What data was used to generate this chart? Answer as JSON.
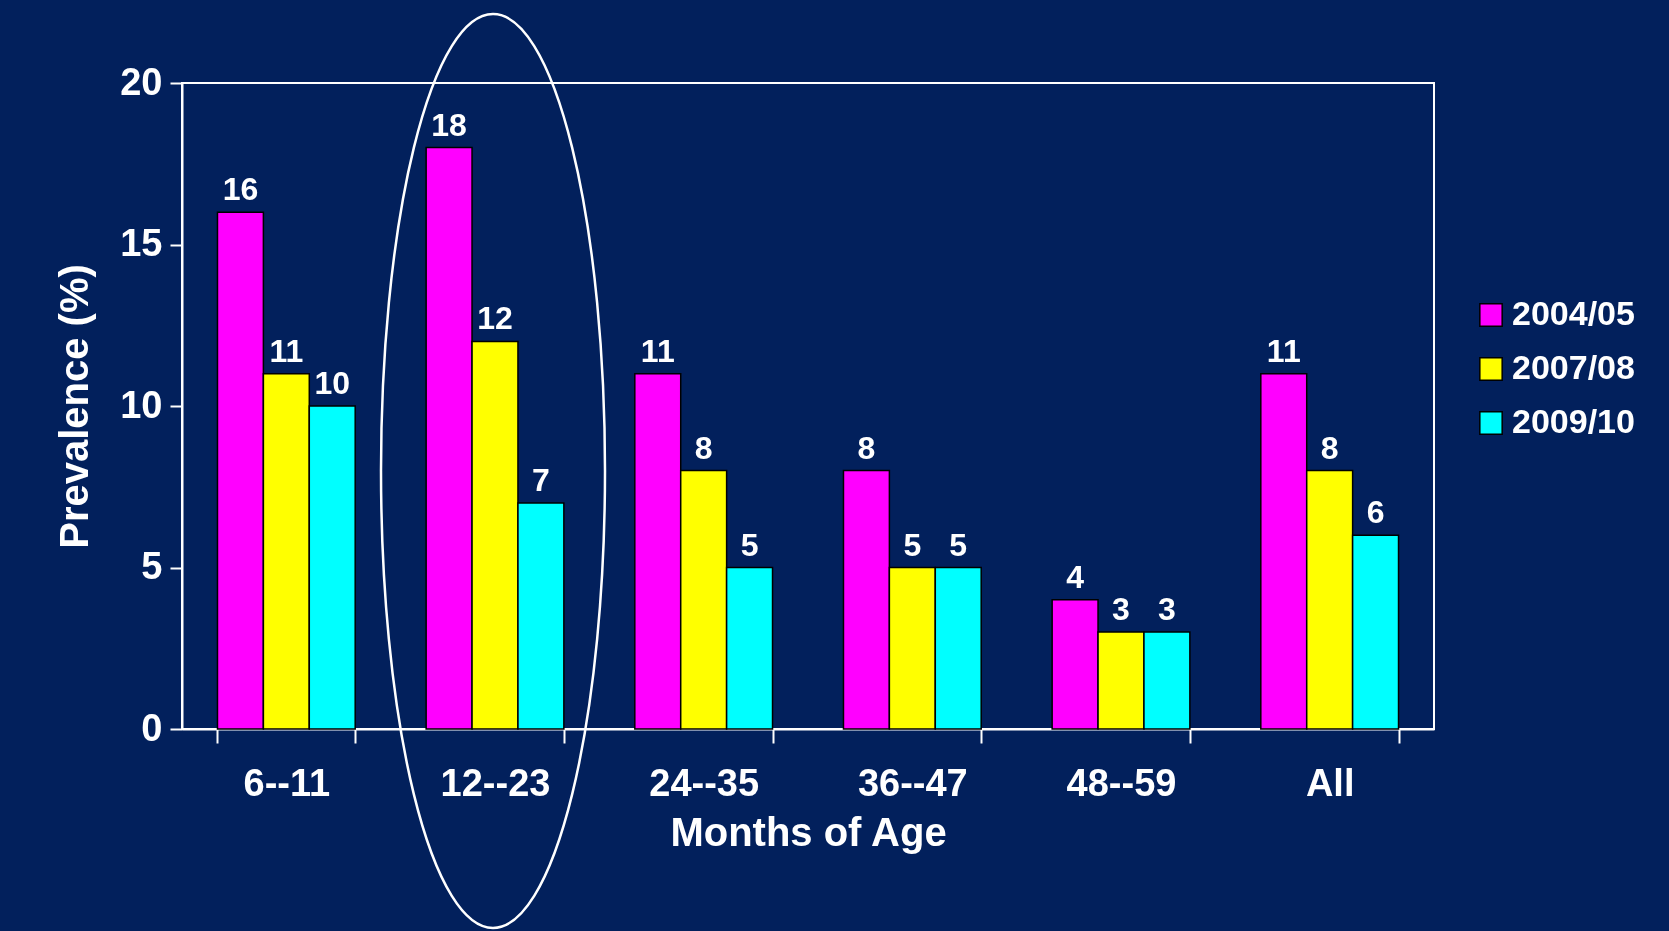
{
  "chart_data": {
    "type": "bar",
    "xlabel": "Months of Age",
    "ylabel": "Prevalence (%)",
    "categories": [
      "6--11",
      "12--23",
      "24--35",
      "36--47",
      "48--59",
      "All"
    ],
    "series": [
      {
        "name": "2004/05",
        "color": "#ff00ff",
        "values": [
          16,
          18,
          11,
          8,
          4,
          11
        ]
      },
      {
        "name": "2007/08",
        "color": "#ffff00",
        "values": [
          11,
          12,
          8,
          5,
          3,
          8
        ]
      },
      {
        "name": "2009/10",
        "color": "#00ffff",
        "values": [
          10,
          7,
          5,
          5,
          3,
          6
        ]
      }
    ],
    "ylim": [
      0,
      20
    ],
    "yticks": [
      0,
      5,
      10,
      15,
      20
    ],
    "data_labels": true,
    "legend": "right"
  }
}
